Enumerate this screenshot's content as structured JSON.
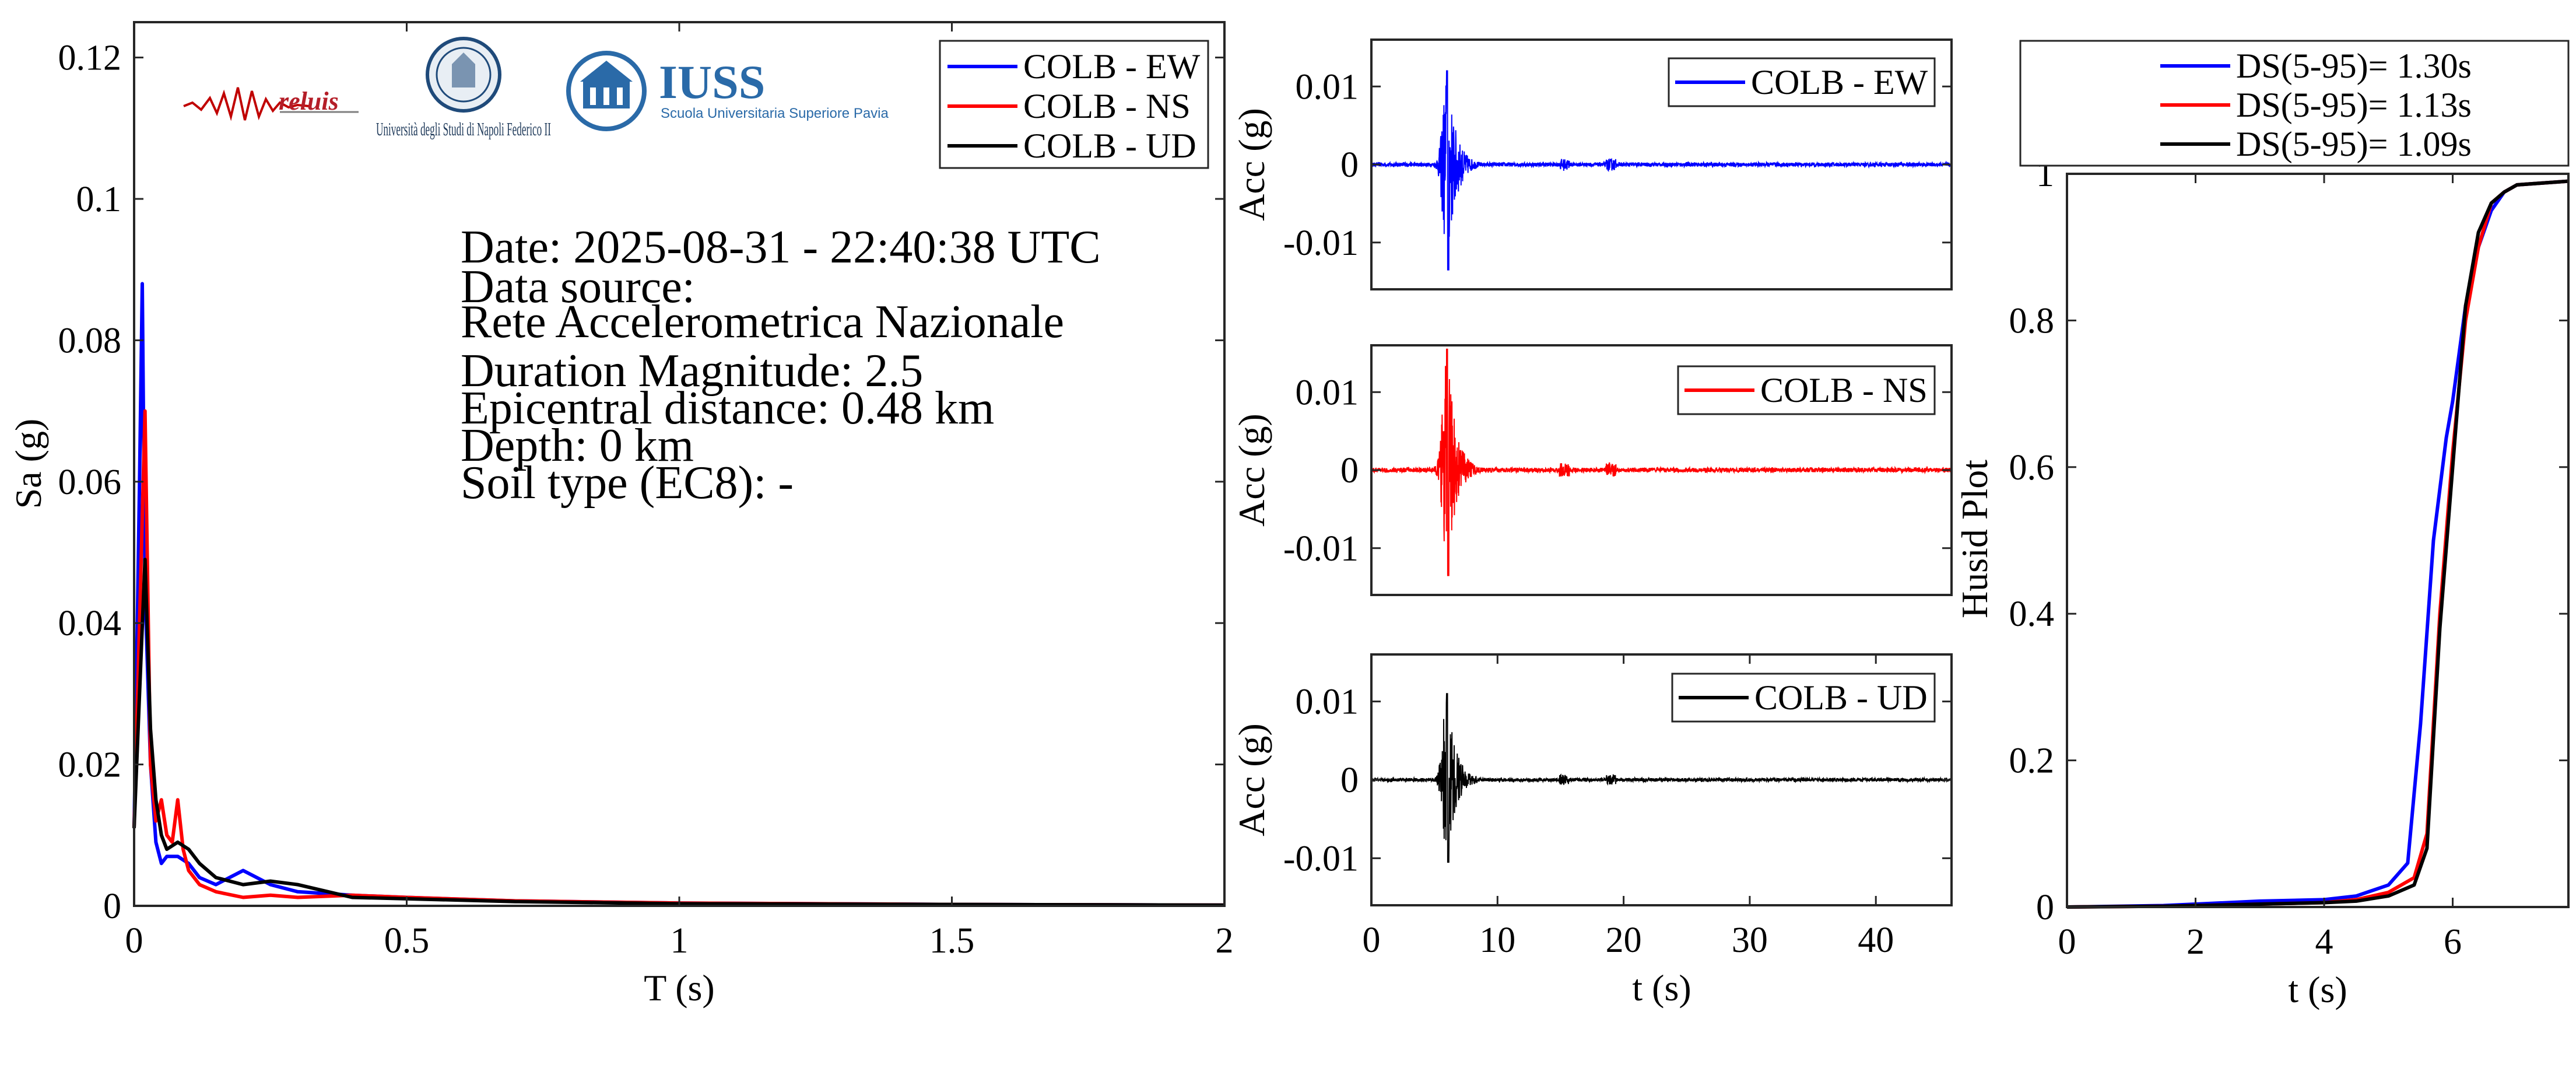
{
  "chart_data": [
    {
      "type": "line",
      "title": "",
      "xlabel": "T (s)",
      "ylabel": "Sa (g)",
      "xlim": [
        0,
        2
      ],
      "ylim": [
        0,
        0.125
      ],
      "xticks": [
        0,
        0.5,
        1,
        1.5,
        2
      ],
      "yticks": [
        0,
        0.02,
        0.04,
        0.06,
        0.08,
        0.1,
        0.12
      ],
      "xtick_labels": [
        "0",
        "0.5",
        "1",
        "1.5",
        "2"
      ],
      "ytick_labels": [
        "0",
        "0.02",
        "0.04",
        "0.06",
        "0.08",
        "0.1",
        "0.12"
      ],
      "legend_position": "top-right",
      "grid": false,
      "series": [
        {
          "name": "COLB - EW",
          "color": "#0000ff",
          "x": [
            0,
            0.01,
            0.015,
            0.02,
            0.03,
            0.04,
            0.05,
            0.06,
            0.08,
            0.1,
            0.12,
            0.15,
            0.2,
            0.25,
            0.3,
            0.4,
            0.5,
            0.7,
            1.0,
            1.5,
            2.0
          ],
          "y": [
            0.011,
            0.06,
            0.088,
            0.045,
            0.02,
            0.009,
            0.006,
            0.007,
            0.007,
            0.006,
            0.004,
            0.003,
            0.005,
            0.003,
            0.002,
            0.0015,
            0.0012,
            0.0007,
            0.0004,
            0.0002,
            0.0001
          ]
        },
        {
          "name": "COLB - NS",
          "color": "#ff0000",
          "x": [
            0,
            0.01,
            0.02,
            0.025,
            0.03,
            0.04,
            0.05,
            0.06,
            0.07,
            0.08,
            0.09,
            0.1,
            0.12,
            0.15,
            0.2,
            0.25,
            0.3,
            0.4,
            0.5,
            0.7,
            1.0,
            1.5,
            2.0
          ],
          "y": [
            0.011,
            0.04,
            0.07,
            0.045,
            0.02,
            0.012,
            0.015,
            0.01,
            0.009,
            0.015,
            0.008,
            0.005,
            0.003,
            0.002,
            0.0012,
            0.0015,
            0.0012,
            0.0015,
            0.0012,
            0.0007,
            0.0004,
            0.0002,
            0.0001
          ]
        },
        {
          "name": "COLB - UD",
          "color": "#000000",
          "x": [
            0,
            0.01,
            0.02,
            0.03,
            0.04,
            0.05,
            0.06,
            0.08,
            0.1,
            0.12,
            0.15,
            0.2,
            0.25,
            0.3,
            0.4,
            0.5,
            0.7,
            1.0,
            1.5,
            2.0
          ],
          "y": [
            0.011,
            0.03,
            0.049,
            0.025,
            0.015,
            0.01,
            0.008,
            0.009,
            0.008,
            0.006,
            0.004,
            0.003,
            0.0035,
            0.003,
            0.0012,
            0.001,
            0.0006,
            0.0003,
            0.0002,
            0.0001
          ]
        }
      ]
    },
    {
      "type": "line",
      "xlabel": "",
      "ylabel": "Acc (g)",
      "xlim": [
        0,
        46
      ],
      "ylim": [
        -0.016,
        0.016
      ],
      "yticks": [
        -0.01,
        0,
        0.01
      ],
      "ytick_labels": [
        "-0.01",
        "0",
        "0.01"
      ],
      "legend_position": "top-right",
      "series": [
        {
          "name": "COLB - EW",
          "color": "#0000ff",
          "peak": 0.012,
          "trough": -0.0135,
          "burst_center": 6
        }
      ]
    },
    {
      "type": "line",
      "xlabel": "",
      "ylabel": "Acc (g)",
      "xlim": [
        0,
        46
      ],
      "ylim": [
        -0.016,
        0.016
      ],
      "yticks": [
        -0.01,
        0,
        0.01
      ],
      "ytick_labels": [
        "-0.01",
        "0",
        "0.01"
      ],
      "legend_position": "top-right",
      "series": [
        {
          "name": "COLB - NS",
          "color": "#ff0000",
          "peak": 0.0155,
          "trough": -0.0135,
          "burst_center": 6
        }
      ]
    },
    {
      "type": "line",
      "xlabel": "t (s)",
      "ylabel": "Acc (g)",
      "xlim": [
        0,
        46
      ],
      "ylim": [
        -0.016,
        0.016
      ],
      "xticks": [
        0,
        10,
        20,
        30,
        40
      ],
      "xtick_labels": [
        "0",
        "10",
        "20",
        "30",
        "40"
      ],
      "yticks": [
        -0.01,
        0,
        0.01
      ],
      "ytick_labels": [
        "-0.01",
        "0",
        "0.01"
      ],
      "legend_position": "top-right",
      "series": [
        {
          "name": "COLB - UD",
          "color": "#000000",
          "peak": 0.011,
          "trough": -0.0105,
          "burst_center": 6
        }
      ]
    },
    {
      "type": "line",
      "xlabel": "t (s)",
      "ylabel": "Husid Plot",
      "xlim": [
        0,
        7.8
      ],
      "ylim": [
        0,
        1
      ],
      "xticks": [
        0,
        2,
        4,
        6
      ],
      "xtick_labels": [
        "0",
        "2",
        "4",
        "6"
      ],
      "yticks": [
        0,
        0.2,
        0.4,
        0.6,
        0.8,
        1
      ],
      "ytick_labels": [
        "0",
        "0.2",
        "0.4",
        "0.6",
        "0.8",
        "1"
      ],
      "legend_position": "above",
      "series": [
        {
          "name": "DS(5-95)= 1.30s",
          "color": "#0000ff",
          "x": [
            0,
            1.5,
            2,
            3,
            4,
            4.5,
            5,
            5.3,
            5.5,
            5.7,
            5.9,
            6.0,
            6.2,
            6.4,
            6.6,
            6.8,
            7.0,
            7.8
          ],
          "y": [
            0,
            0.002,
            0.004,
            0.008,
            0.01,
            0.015,
            0.03,
            0.06,
            0.25,
            0.5,
            0.64,
            0.69,
            0.82,
            0.9,
            0.95,
            0.975,
            0.985,
            0.99
          ]
        },
        {
          "name": "DS(5-95)= 1.13s",
          "color": "#ff0000",
          "x": [
            0,
            1.5,
            2,
            3,
            4,
            4.5,
            5,
            5.4,
            5.6,
            5.8,
            6.0,
            6.2,
            6.4,
            6.6,
            6.8,
            7.0,
            7.8
          ],
          "y": [
            0,
            0.001,
            0.002,
            0.004,
            0.006,
            0.01,
            0.02,
            0.04,
            0.1,
            0.4,
            0.62,
            0.8,
            0.9,
            0.96,
            0.975,
            0.985,
            0.99
          ]
        },
        {
          "name": "DS(5-95)= 1.09s",
          "color": "#000000",
          "x": [
            0,
            1.5,
            2,
            3,
            4,
            4.5,
            5,
            5.4,
            5.6,
            5.8,
            6.0,
            6.2,
            6.4,
            6.6,
            6.8,
            7.0,
            7.8
          ],
          "y": [
            0,
            0.001,
            0.002,
            0.004,
            0.006,
            0.008,
            0.015,
            0.03,
            0.08,
            0.38,
            0.6,
            0.82,
            0.92,
            0.96,
            0.975,
            0.985,
            0.99
          ]
        }
      ]
    }
  ],
  "info": {
    "date": "Date: 2025-08-31 - 22:40:38 UTC",
    "source_label": "Data source:",
    "source": "Rete Accelerometrica Nazionale",
    "magnitude": "Duration Magnitude: 2.5",
    "distance": "Epicentral distance: 0.48 km",
    "depth": "Depth: 0 km",
    "soil": "Soil type (EC8): -"
  },
  "logos": {
    "reluis": "reluis",
    "unina": "Università degli Studi di Napoli Federico II",
    "iuss_name": "IUSS",
    "iuss_sub": "Scuola Universitaria Superiore Pavia"
  }
}
